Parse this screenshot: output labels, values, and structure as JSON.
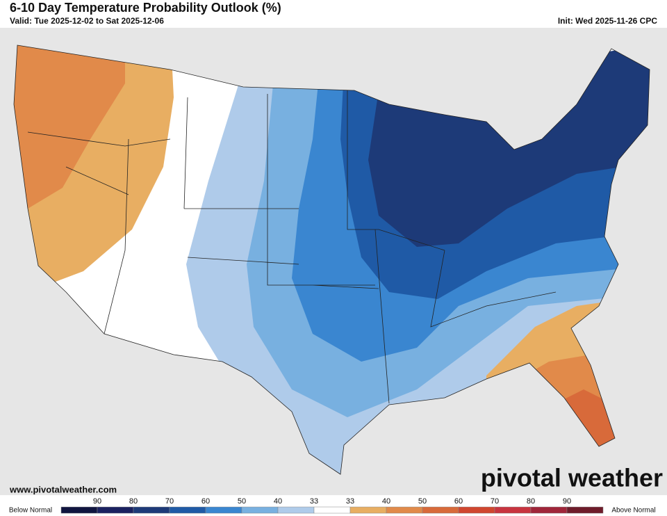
{
  "header": {
    "title": "6-10 Day Temperature Probability Outlook (%)",
    "valid": "Valid: Tue 2025-12-02 to Sat 2025-12-06",
    "init": "Init: Wed 2025-11-26 CPC"
  },
  "footer": {
    "url": "www.pivotalweather.com",
    "logo": "pivotal weather"
  },
  "legend": {
    "below_label": "Below Normal",
    "above_label": "Above Normal",
    "below_ticks": [
      90,
      80,
      70,
      60,
      50,
      40,
      33
    ],
    "above_ticks": [
      33,
      40,
      50,
      60,
      70,
      80,
      90
    ],
    "colors": [
      "#10153f",
      "#1a2160",
      "#1d3a78",
      "#1f5aa6",
      "#3a86d0",
      "#78b0e0",
      "#afcbea",
      "#ffffff",
      "#e8ae62",
      "#e18a4a",
      "#d86a3a",
      "#d0462f",
      "#c8343f",
      "#a0263a",
      "#6e1c2a"
    ]
  }
}
